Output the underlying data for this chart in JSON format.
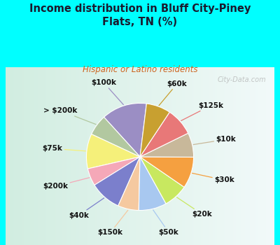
{
  "title": "Income distribution in Bluff City-Piney\nFlats, TN (%)",
  "subtitle": "Hispanic or Latino residents",
  "labels": [
    "$100k",
    "> $200k",
    "$75k",
    "$200k",
    "$40k",
    "$150k",
    "$50k",
    "$20k",
    "$30k",
    "$10k",
    "$125k",
    "$60k"
  ],
  "sizes": [
    13,
    6,
    10,
    5,
    9,
    6,
    8,
    7,
    9,
    7,
    8,
    7
  ],
  "colors": [
    "#9b8ec4",
    "#b2c8a0",
    "#f5f07a",
    "#f5a8b8",
    "#7b7fcc",
    "#f5c9a0",
    "#a8c8f0",
    "#c8e860",
    "#f5a040",
    "#c8b89a",
    "#e87878",
    "#c8a030"
  ],
  "bg_color": "#00ffff",
  "chart_bg_left": "#d0eed8",
  "chart_bg_right": "#e8f8f0",
  "title_color": "#1a1a2e",
  "subtitle_color": "#cc6622",
  "watermark": "City-Data.com",
  "label_fontsize": 7.5,
  "startangle": 83
}
